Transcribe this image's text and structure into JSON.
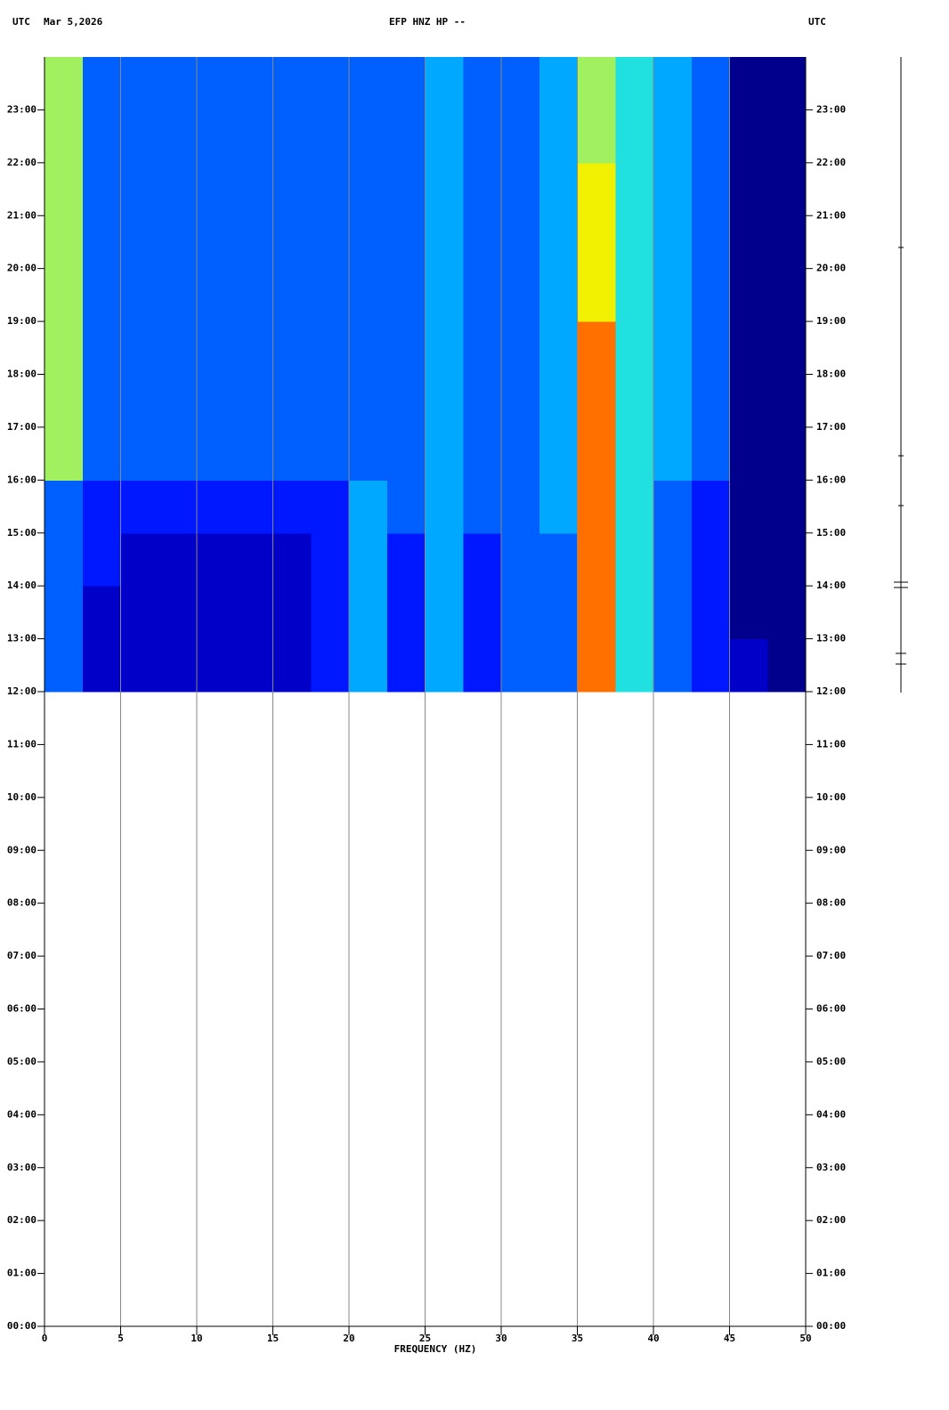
{
  "chart_data": {
    "type": "spectrogram",
    "title": "EFP HNZ HP --",
    "left_label": "UTC",
    "date": "Mar 5,2026",
    "right_label": "UTC",
    "xlabel": "FREQUENCY (HZ)",
    "xlim": [
      0,
      50
    ],
    "xticks": [
      0,
      5,
      10,
      15,
      20,
      25,
      30,
      35,
      40,
      45,
      50
    ],
    "ylim": [
      0,
      24
    ],
    "yticks": [
      {
        "value": 0,
        "label": "00:00"
      },
      {
        "value": 1,
        "label": "01:00"
      },
      {
        "value": 2,
        "label": "02:00"
      },
      {
        "value": 3,
        "label": "03:00"
      },
      {
        "value": 4,
        "label": "04:00"
      },
      {
        "value": 5,
        "label": "05:00"
      },
      {
        "value": 6,
        "label": "06:00"
      },
      {
        "value": 7,
        "label": "07:00"
      },
      {
        "value": 8,
        "label": "08:00"
      },
      {
        "value": 9,
        "label": "09:00"
      },
      {
        "value": 10,
        "label": "10:00"
      },
      {
        "value": 11,
        "label": "11:00"
      },
      {
        "value": 12,
        "label": "12:00"
      },
      {
        "value": 13,
        "label": "13:00"
      },
      {
        "value": 14,
        "label": "14:00"
      },
      {
        "value": 15,
        "label": "15:00"
      },
      {
        "value": 16,
        "label": "16:00"
      },
      {
        "value": 17,
        "label": "17:00"
      },
      {
        "value": 18,
        "label": "18:00"
      },
      {
        "value": 19,
        "label": "19:00"
      },
      {
        "value": 20,
        "label": "20:00"
      },
      {
        "value": 21,
        "label": "21:00"
      },
      {
        "value": 22,
        "label": "22:00"
      },
      {
        "value": 23,
        "label": "23:00"
      }
    ],
    "grid": true,
    "frequency_bins": [
      0,
      2.5,
      5,
      7.5,
      10,
      12.5,
      15,
      17.5,
      20,
      22.5,
      25,
      27.5,
      30,
      32.5,
      35,
      37.5,
      40,
      42.5,
      45,
      47.5,
      50
    ],
    "time_bins": [
      12,
      13,
      14,
      15,
      16,
      17,
      18,
      19,
      20,
      21,
      22,
      23,
      24
    ],
    "levels": [
      [
        3,
        1,
        1,
        1,
        1,
        1,
        1,
        2,
        4,
        2,
        4,
        2,
        3,
        3,
        8,
        5,
        3,
        2,
        1,
        0
      ],
      [
        3,
        1,
        1,
        1,
        1,
        1,
        1,
        2,
        4,
        2,
        4,
        2,
        3,
        3,
        8,
        5,
        3,
        2,
        0,
        0
      ],
      [
        3,
        2,
        1,
        1,
        1,
        1,
        1,
        2,
        4,
        2,
        4,
        2,
        3,
        3,
        8,
        5,
        3,
        2,
        0,
        0
      ],
      [
        3,
        2,
        2,
        2,
        2,
        2,
        2,
        2,
        4,
        3,
        4,
        3,
        3,
        4,
        8,
        5,
        3,
        2,
        0,
        0
      ],
      [
        6,
        3,
        3,
        3,
        3,
        3,
        3,
        3,
        3,
        3,
        4,
        3,
        3,
        4,
        8,
        5,
        4,
        3,
        0,
        0
      ],
      [
        6,
        3,
        3,
        3,
        3,
        3,
        3,
        3,
        3,
        3,
        4,
        3,
        3,
        4,
        8,
        5,
        4,
        3,
        0,
        0
      ],
      [
        6,
        3,
        3,
        3,
        3,
        3,
        3,
        3,
        3,
        3,
        4,
        3,
        3,
        4,
        8,
        5,
        4,
        3,
        0,
        0
      ],
      [
        6,
        3,
        3,
        3,
        3,
        3,
        3,
        3,
        3,
        3,
        4,
        3,
        3,
        4,
        7,
        5,
        4,
        3,
        0,
        0
      ],
      [
        6,
        3,
        3,
        3,
        3,
        3,
        3,
        3,
        3,
        3,
        4,
        3,
        3,
        4,
        7,
        5,
        4,
        3,
        0,
        0
      ],
      [
        6,
        3,
        3,
        3,
        3,
        3,
        3,
        3,
        3,
        3,
        4,
        3,
        3,
        4,
        7,
        5,
        4,
        3,
        0,
        0
      ],
      [
        6,
        3,
        3,
        3,
        3,
        3,
        3,
        3,
        3,
        3,
        4,
        3,
        3,
        4,
        6,
        5,
        4,
        3,
        0,
        0
      ],
      [
        6,
        3,
        3,
        3,
        3,
        3,
        3,
        3,
        3,
        3,
        4,
        3,
        3,
        4,
        6,
        5,
        4,
        3,
        0,
        0
      ]
    ]
  }
}
